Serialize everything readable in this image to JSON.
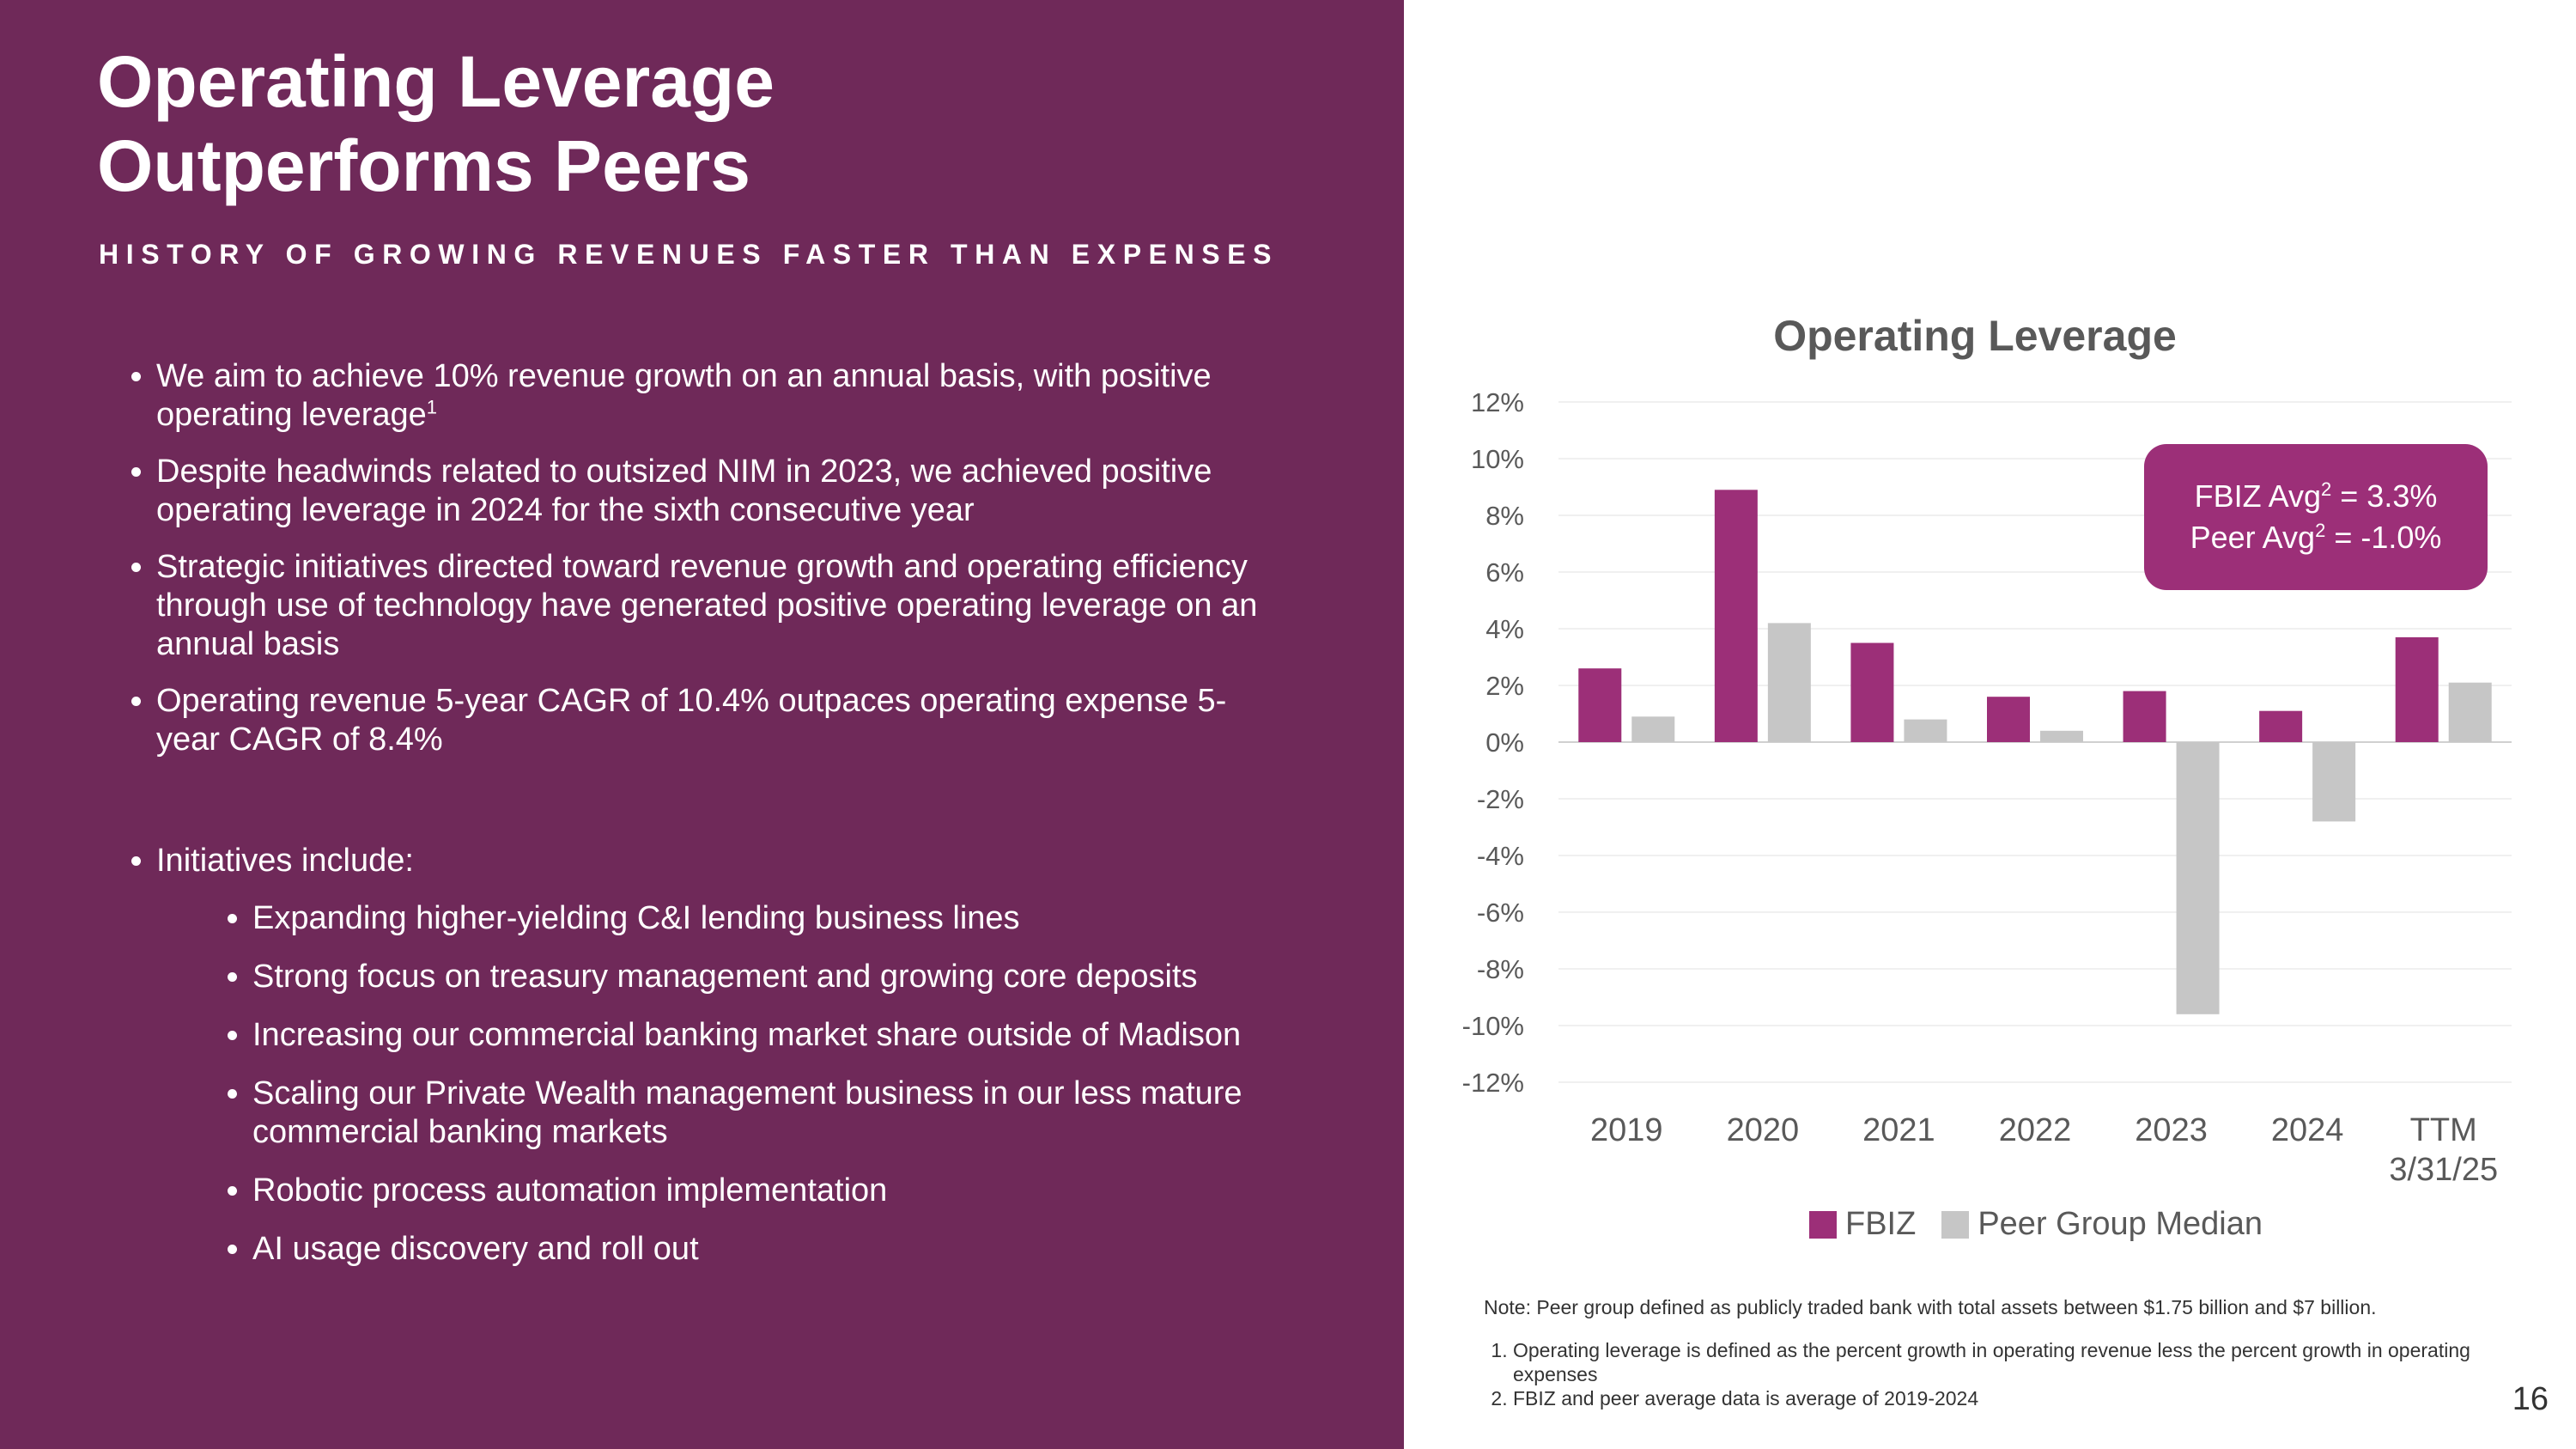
{
  "title": {
    "line1": "Operating Leverage",
    "line2": "Outperforms Peers"
  },
  "subtitle": "HISTORY OF GROWING REVENUES FASTER THAN EXPENSES",
  "bullets": {
    "b1": "We aim to achieve 10% revenue growth on an annual basis, with positive operating leverage",
    "b1_footnote": "1",
    "b2": "Despite headwinds related to outsized NIM in 2023, we achieved positive operating leverage in 2024 for the sixth consecutive year",
    "b3": "Strategic initiatives directed toward revenue growth and operating efficiency through use of technology have generated positive operating leverage on an annual basis",
    "b4": "Operating revenue 5-year CAGR of 10.4% outpaces operating expense 5-year CAGR of 8.4%",
    "b5": "Initiatives include:",
    "initiatives": [
      "Expanding higher-yielding C&I lending business lines",
      "Strong focus on treasury management and growing core deposits",
      "Increasing our commercial banking market share outside of Madison",
      "Scaling our Private Wealth management business in our less mature commercial banking markets",
      "Robotic process automation implementation",
      "AI usage discovery and roll out"
    ]
  },
  "callout": {
    "fbiz_label": "FBIZ Avg",
    "fbiz_sup": "2",
    "fbiz_value": " = 3.3%",
    "peer_label": "Peer Avg",
    "peer_sup": "2",
    "peer_value": " = -1.0%"
  },
  "legend": {
    "fbiz": "FBIZ",
    "peer": "Peer Group Median"
  },
  "notes": {
    "note": "Note: Peer group defined as publicly traded bank with total assets between $1.75 billion and $7  billion.",
    "footnote1": "Operating leverage is defined as the percent growth in operating revenue less the percent growth in operating expenses",
    "footnote2": "FBIZ and peer average data is average of 2019-2024"
  },
  "page_number": "16",
  "colors": {
    "panel": "#6f2959",
    "fbiz": "#9c2f78",
    "peer": "#c6c6c6",
    "callout": "#9c2f78"
  },
  "chart_data": {
    "type": "bar",
    "title": "Operating Leverage",
    "categories": [
      "2019",
      "2020",
      "2021",
      "2022",
      "2023",
      "2024",
      "TTM\n3/31/25"
    ],
    "series": [
      {
        "name": "FBIZ",
        "values": [
          2.6,
          8.9,
          3.5,
          1.6,
          1.8,
          1.1,
          3.7
        ]
      },
      {
        "name": "Peer Group Median",
        "values": [
          0.9,
          4.2,
          0.8,
          0.4,
          -9.6,
          -2.8,
          2.1
        ]
      }
    ],
    "ylim": [
      -12,
      12
    ],
    "yticks": [
      12,
      10,
      8,
      6,
      4,
      2,
      0,
      -2,
      -4,
      -6,
      -8,
      -10,
      -12
    ],
    "ytick_labels": [
      "12%",
      "10%",
      "8%",
      "6%",
      "4%",
      "2%",
      "0%",
      "-2%",
      "-4%",
      "-6%",
      "-8%",
      "-10%",
      "-12%"
    ],
    "xlabel": "",
    "ylabel": "",
    "grid": true,
    "legend": "bottom"
  }
}
